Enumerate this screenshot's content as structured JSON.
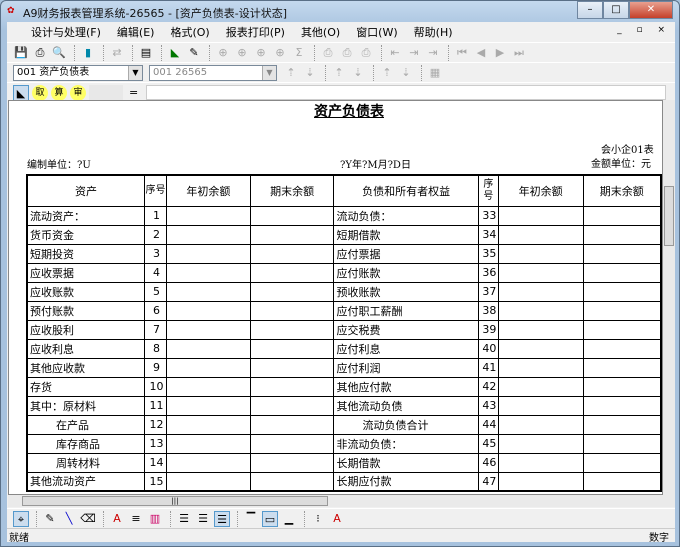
{
  "window": {
    "title": "A9财务报表管理系统-26565 - [资产负债表-设计状态]",
    "min": "–",
    "max": "□",
    "close": "✕"
  },
  "menu": [
    "设计与处理(F)",
    "编辑(E)",
    "格式(O)",
    "报表打印(P)",
    "其他(O)",
    "窗口(W)",
    "帮助(H)"
  ],
  "mdi_controls": "_ ▫ ×",
  "toolbar2": {
    "report_combo": "001  资产负债表",
    "unit_combo": "001  26565"
  },
  "toolbar3": {
    "buttons": [
      "取",
      "算",
      "审"
    ],
    "formula_eq": "="
  },
  "report": {
    "title": "资产负债表",
    "form_no": "会小企01表",
    "company": "编制单位：?U",
    "date": "?Y年?M月?D日",
    "currency": "金额单位：元",
    "headers": [
      "资产",
      "序号",
      "年初余额",
      "期末余额",
      "负债和所有者权益",
      "序号",
      "年初余额",
      "期末余额"
    ],
    "rows": [
      [
        "流动资产：",
        "1",
        "流动负债：",
        "33"
      ],
      [
        "货币资金",
        "2",
        "短期借款",
        "34"
      ],
      [
        "短期投资",
        "3",
        "应付票据",
        "35"
      ],
      [
        "应收票据",
        "4",
        "应付账款",
        "36"
      ],
      [
        "应收账款",
        "5",
        "预收账款",
        "37"
      ],
      [
        "预付账款",
        "6",
        "应付职工薪酬",
        "38"
      ],
      [
        "应收股利",
        "7",
        "应交税费",
        "39"
      ],
      [
        "应收利息",
        "8",
        "应付利息",
        "40"
      ],
      [
        "其他应收款",
        "9",
        "应付利润",
        "41"
      ],
      [
        "存货",
        "10",
        "其他应付款",
        "42"
      ],
      [
        "其中：原材料",
        "11",
        "其他流动负债",
        "43"
      ],
      [
        "在产品",
        "12",
        "流动负债合计",
        "44"
      ],
      [
        "库存商品",
        "13",
        "非流动负债：",
        "45"
      ],
      [
        "周转材料",
        "14",
        "长期借款",
        "46"
      ],
      [
        "其他流动资产",
        "15",
        "长期应付款",
        "47"
      ]
    ]
  },
  "status": {
    "left": "就绪",
    "right": "数字"
  }
}
